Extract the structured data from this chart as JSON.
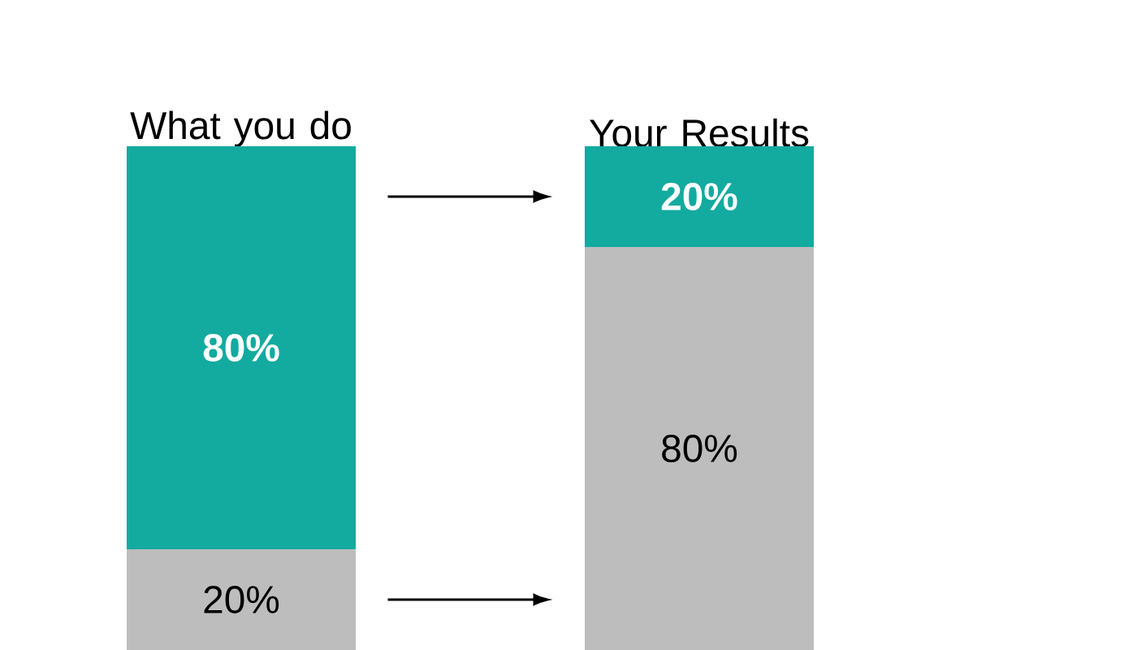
{
  "chart_data": {
    "type": "bar",
    "stacked": true,
    "tick_labels": "x",
    "categories": [
      "What you do",
      "Your Results"
    ],
    "series": [
      {
        "color": "#bdbdbd",
        "values": [
          20,
          80
        ],
        "value_labels": [
          "20%",
          "80%"
        ]
      },
      {
        "color": "#13aaa0",
        "values": [
          80,
          20
        ],
        "value_labels": [
          "80%",
          "20%"
        ]
      }
    ]
  }
}
